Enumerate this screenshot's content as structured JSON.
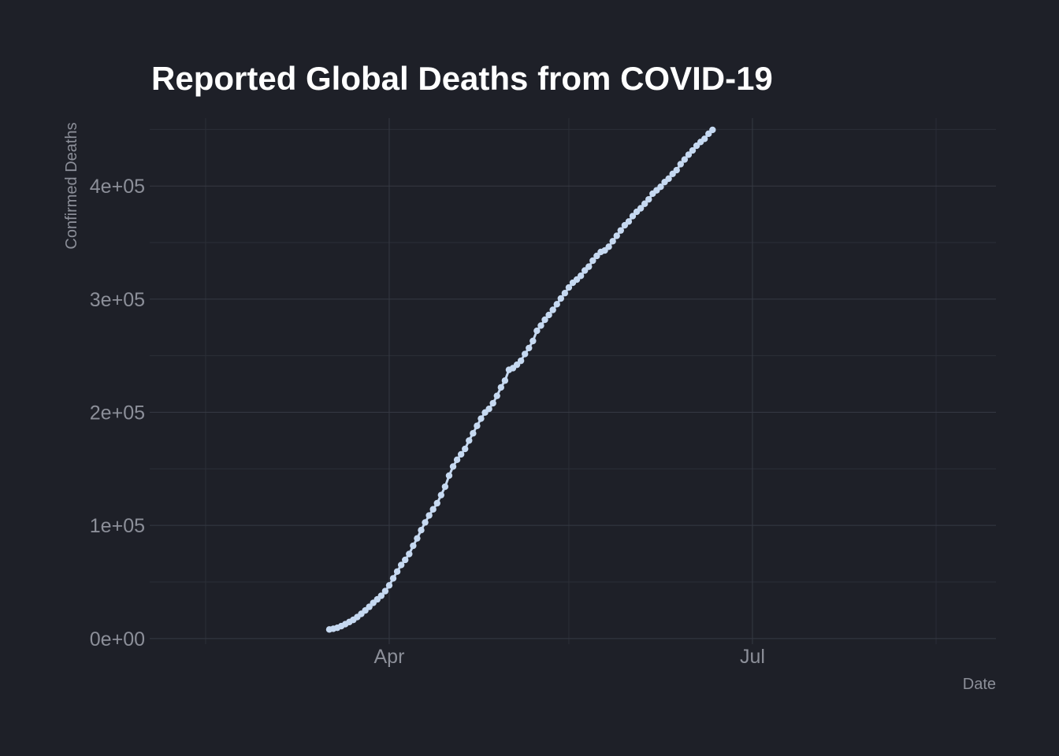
{
  "chart_data": {
    "type": "line",
    "title": "Reported Global Deaths from COVID-19",
    "xlabel": "Date",
    "ylabel": "Confirmed Deaths",
    "x_range": [
      "2020-02-01",
      "2020-08-31"
    ],
    "ylim": [
      -5000,
      460000
    ],
    "x_ticks": [
      {
        "date": "2020-04-01",
        "label": "Apr"
      },
      {
        "date": "2020-07-01",
        "label": "Jul"
      }
    ],
    "x_minor_ticks": [
      "2020-02-15",
      "2020-05-16",
      "2020-08-16"
    ],
    "y_ticks": [
      {
        "value": 0,
        "label": "0e+00"
      },
      {
        "value": 100000,
        "label": "1e+05"
      },
      {
        "value": 200000,
        "label": "2e+05"
      },
      {
        "value": 300000,
        "label": "3e+05"
      },
      {
        "value": 400000,
        "label": "4e+05"
      }
    ],
    "y_minor_ticks": [
      50000,
      150000,
      250000,
      350000,
      450000
    ],
    "grid": true,
    "legend": "none",
    "series": [
      {
        "color": "#c6d9f1",
        "points": [
          [
            "2020-03-17",
            8000
          ],
          [
            "2020-03-18",
            8600
          ],
          [
            "2020-03-19",
            9500
          ],
          [
            "2020-03-20",
            11000
          ],
          [
            "2020-03-21",
            12700
          ],
          [
            "2020-03-22",
            14600
          ],
          [
            "2020-03-23",
            16500
          ],
          [
            "2020-03-24",
            19000
          ],
          [
            "2020-03-25",
            21800
          ],
          [
            "2020-03-26",
            24800
          ],
          [
            "2020-03-27",
            28000
          ],
          [
            "2020-03-28",
            31500
          ],
          [
            "2020-03-29",
            34600
          ],
          [
            "2020-03-30",
            37800
          ],
          [
            "2020-03-31",
            41900
          ],
          [
            "2020-04-01",
            47000
          ],
          [
            "2020-04-02",
            53200
          ],
          [
            "2020-04-03",
            59200
          ],
          [
            "2020-04-04",
            65000
          ],
          [
            "2020-04-05",
            69500
          ],
          [
            "2020-04-06",
            74700
          ],
          [
            "2020-04-07",
            82000
          ],
          [
            "2020-04-08",
            88500
          ],
          [
            "2020-04-09",
            95800
          ],
          [
            "2020-04-10",
            102600
          ],
          [
            "2020-04-11",
            108800
          ],
          [
            "2020-04-12",
            114200
          ],
          [
            "2020-04-13",
            119600
          ],
          [
            "2020-04-14",
            126800
          ],
          [
            "2020-04-15",
            134200
          ],
          [
            "2020-04-16",
            144000
          ],
          [
            "2020-04-17",
            152000
          ],
          [
            "2020-04-18",
            158000
          ],
          [
            "2020-04-19",
            162800
          ],
          [
            "2020-04-20",
            167600
          ],
          [
            "2020-04-21",
            175000
          ],
          [
            "2020-04-22",
            181400
          ],
          [
            "2020-04-23",
            188000
          ],
          [
            "2020-04-24",
            194400
          ],
          [
            "2020-04-25",
            199800
          ],
          [
            "2020-04-26",
            203000
          ],
          [
            "2020-04-27",
            208000
          ],
          [
            "2020-04-28",
            214500
          ],
          [
            "2020-04-29",
            222000
          ],
          [
            "2020-04-30",
            228000
          ],
          [
            "2020-05-01",
            237500
          ],
          [
            "2020-05-02",
            239000
          ],
          [
            "2020-05-03",
            242000
          ],
          [
            "2020-05-04",
            245500
          ],
          [
            "2020-05-05",
            251500
          ],
          [
            "2020-05-06",
            256800
          ],
          [
            "2020-05-07",
            263000
          ],
          [
            "2020-05-08",
            272000
          ],
          [
            "2020-05-09",
            276600
          ],
          [
            "2020-05-10",
            281800
          ],
          [
            "2020-05-11",
            286000
          ],
          [
            "2020-05-12",
            290500
          ],
          [
            "2020-05-13",
            295500
          ],
          [
            "2020-05-14",
            300600
          ],
          [
            "2020-05-15",
            305300
          ],
          [
            "2020-05-16",
            310300
          ],
          [
            "2020-05-17",
            314500
          ],
          [
            "2020-05-18",
            317300
          ],
          [
            "2020-05-19",
            320600
          ],
          [
            "2020-05-20",
            325300
          ],
          [
            "2020-05-21",
            328700
          ],
          [
            "2020-05-22",
            334000
          ],
          [
            "2020-05-23",
            338200
          ],
          [
            "2020-05-24",
            341700
          ],
          [
            "2020-05-25",
            343000
          ],
          [
            "2020-05-26",
            346300
          ],
          [
            "2020-05-27",
            351200
          ],
          [
            "2020-05-28",
            356000
          ],
          [
            "2020-05-29",
            360700
          ],
          [
            "2020-05-30",
            365300
          ],
          [
            "2020-05-31",
            368600
          ],
          [
            "2020-06-01",
            373400
          ],
          [
            "2020-06-02",
            377200
          ],
          [
            "2020-06-03",
            380300
          ],
          [
            "2020-06-04",
            384300
          ],
          [
            "2020-06-05",
            388200
          ],
          [
            "2020-06-06",
            393200
          ],
          [
            "2020-06-07",
            396200
          ],
          [
            "2020-06-08",
            399300
          ],
          [
            "2020-06-09",
            403500
          ],
          [
            "2020-06-10",
            406500
          ],
          [
            "2020-06-11",
            410700
          ],
          [
            "2020-06-12",
            414000
          ],
          [
            "2020-06-13",
            419300
          ],
          [
            "2020-06-14",
            423400
          ],
          [
            "2020-06-15",
            427700
          ],
          [
            "2020-06-16",
            431400
          ],
          [
            "2020-06-17",
            435600
          ],
          [
            "2020-06-18",
            438900
          ],
          [
            "2020-06-19",
            441700
          ],
          [
            "2020-06-20",
            446200
          ],
          [
            "2020-06-21",
            449600
          ]
        ]
      }
    ]
  }
}
